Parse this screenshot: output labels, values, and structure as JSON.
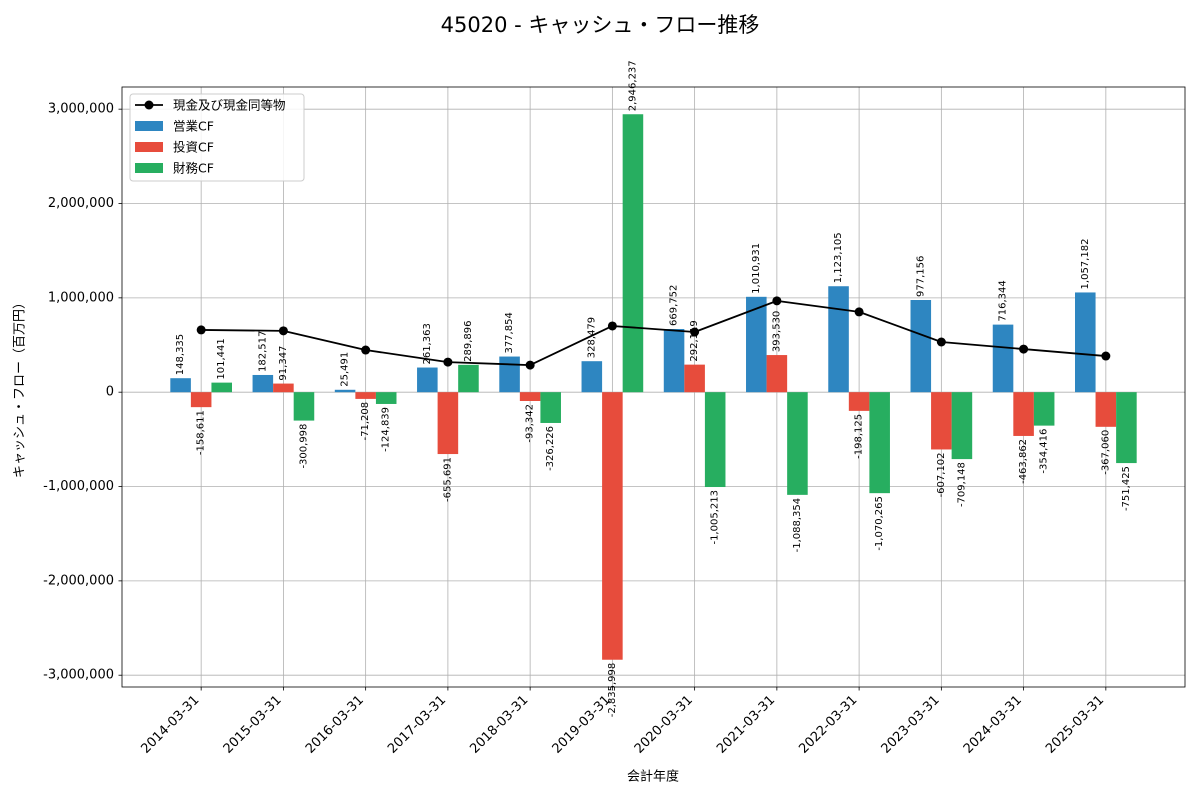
{
  "chart_data": {
    "type": "bar",
    "title": "45020 - キャッシュ・フロー推移",
    "xlabel": "会計年度",
    "ylabel": "キャッシュ・フロー（百万円）",
    "categories": [
      "2014-03-31",
      "2015-03-31",
      "2016-03-31",
      "2017-03-31",
      "2018-03-31",
      "2019-03-31",
      "2020-03-31",
      "2021-03-31",
      "2022-03-31",
      "2023-03-31",
      "2024-03-31",
      "2025-03-31"
    ],
    "series": [
      {
        "name": "現金及び現金同等物",
        "type": "line",
        "color": "#000000",
        "values": [
          660000,
          650000,
          447000,
          319000,
          287000,
          702000,
          638000,
          968000,
          851000,
          532000,
          457000,
          383000
        ]
      },
      {
        "name": "営業CF",
        "type": "bar",
        "color": "#2e86c1",
        "values": [
          148335,
          182517,
          25491,
          261363,
          377854,
          328479,
          669752,
          1010931,
          1123105,
          977156,
          716344,
          1057182
        ],
        "labels": [
          "148,335",
          "182,517",
          "25,491",
          "261,363",
          "377,854",
          "328,479",
          "669,752",
          "1,010,931",
          "1,123,105",
          "977,156",
          "716,344",
          "1,057,182"
        ]
      },
      {
        "name": "投資CF",
        "type": "bar",
        "color": "#e74c3c",
        "values": [
          -158611,
          91347,
          -71208,
          -655691,
          -93342,
          -2835998,
          292119,
          393530,
          -198125,
          -607102,
          -463862,
          -367060
        ],
        "labels": [
          "-158,611",
          "91,347",
          "-71,208",
          "-655,691",
          "-93,342",
          "-2,835,998",
          "292,119",
          "393,530",
          "-198,125",
          "-607,102",
          "-463,862",
          "-367,060"
        ]
      },
      {
        "name": "財務CF",
        "type": "bar",
        "color": "#27ae60",
        "values": [
          101441,
          -300998,
          -124839,
          289896,
          -326226,
          2946237,
          -1005213,
          -1088354,
          -1070265,
          -709148,
          -354416,
          -751425
        ],
        "labels": [
          "101,441",
          "-300,998",
          "-124,839",
          "289,896",
          "-326,226",
          "2,946,237",
          "-1,005,213",
          "-1,088,354",
          "-1,070,265",
          "-709,148",
          "-354,416",
          "-751,425"
        ]
      }
    ],
    "ylim": [
      -3125000,
      3235000
    ],
    "yticks": [
      -3000000,
      -2000000,
      -1000000,
      0,
      1000000,
      2000000,
      3000000
    ],
    "ytick_labels": [
      "-3,000,000",
      "-2,000,000",
      "-1,000,000",
      "0",
      "1,000,000",
      "2,000,000",
      "3,000,000"
    ],
    "grid": true,
    "legend": {
      "position": "top-left"
    }
  }
}
